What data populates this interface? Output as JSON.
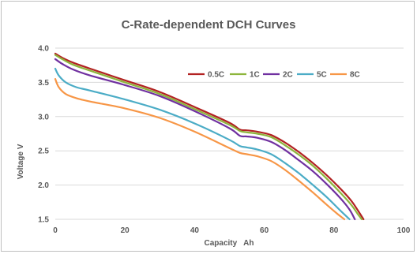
{
  "chart_data": {
    "type": "line",
    "title": "C-Rate-dependent DCH Curves",
    "xlabel": "Capacity   Ah",
    "ylabel": "Voltage V",
    "xlim": [
      0,
      100
    ],
    "ylim": [
      1.5,
      4.0
    ],
    "x_ticks": [
      "0",
      "20",
      "40",
      "60",
      "80",
      "100"
    ],
    "y_ticks": [
      "4.0",
      "3.5",
      "3.0",
      "2.5",
      "2.0",
      "1.5"
    ],
    "grid": "horizontal",
    "legend_position": "top-right",
    "series": [
      {
        "name": "0.5C",
        "color": "#b22222",
        "x": [
          0,
          2,
          5,
          10,
          20,
          30,
          40,
          50,
          53,
          55,
          58,
          62,
          66,
          70,
          74,
          78,
          82,
          85,
          87,
          88.5
        ],
        "y": [
          3.92,
          3.86,
          3.79,
          3.7,
          3.53,
          3.36,
          3.14,
          2.91,
          2.81,
          2.8,
          2.78,
          2.73,
          2.62,
          2.48,
          2.32,
          2.14,
          1.94,
          1.77,
          1.62,
          1.5
        ]
      },
      {
        "name": "1C",
        "color": "#8db53c",
        "x": [
          0,
          2,
          5,
          10,
          20,
          30,
          40,
          50,
          53,
          55,
          58,
          62,
          66,
          70,
          74,
          78,
          82,
          85,
          86.8,
          88
        ],
        "y": [
          3.9,
          3.84,
          3.76,
          3.67,
          3.5,
          3.33,
          3.11,
          2.88,
          2.79,
          2.77,
          2.75,
          2.7,
          2.58,
          2.44,
          2.28,
          2.09,
          1.88,
          1.71,
          1.58,
          1.5
        ]
      },
      {
        "name": "2C",
        "color": "#7030a0",
        "x": [
          0,
          2,
          5,
          10,
          20,
          30,
          40,
          50,
          53,
          55,
          58,
          62,
          66,
          70,
          74,
          78,
          82,
          84.5,
          86
        ],
        "y": [
          3.84,
          3.77,
          3.69,
          3.6,
          3.46,
          3.3,
          3.08,
          2.83,
          2.72,
          2.71,
          2.69,
          2.63,
          2.51,
          2.36,
          2.2,
          2.01,
          1.8,
          1.64,
          1.5
        ]
      },
      {
        "name": "5C",
        "color": "#4bacc6",
        "x": [
          0,
          1,
          3,
          6,
          10,
          20,
          30,
          40,
          50,
          53,
          55,
          58,
          62,
          66,
          70,
          74,
          78,
          82,
          84.5
        ],
        "y": [
          3.7,
          3.6,
          3.5,
          3.43,
          3.38,
          3.25,
          3.1,
          2.9,
          2.66,
          2.57,
          2.55,
          2.52,
          2.45,
          2.32,
          2.17,
          2.0,
          1.82,
          1.62,
          1.5
        ]
      },
      {
        "name": "8C",
        "color": "#f79646",
        "x": [
          0,
          1,
          3,
          6,
          10,
          20,
          30,
          40,
          50,
          53,
          55,
          58,
          62,
          66,
          70,
          74,
          78,
          81,
          83
        ],
        "y": [
          3.55,
          3.43,
          3.33,
          3.27,
          3.22,
          3.12,
          2.98,
          2.78,
          2.54,
          2.47,
          2.45,
          2.42,
          2.35,
          2.22,
          2.06,
          1.89,
          1.71,
          1.58,
          1.5
        ]
      }
    ]
  }
}
